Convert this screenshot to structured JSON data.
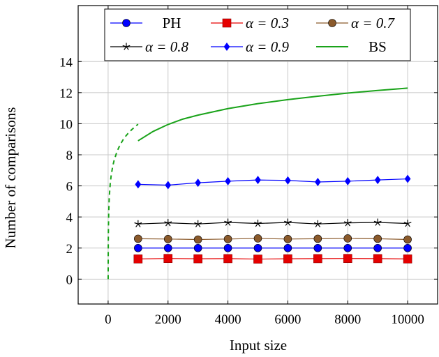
{
  "chart_data": {
    "type": "line",
    "xlabel": "Input size",
    "ylabel": "Number of comparisons",
    "xlim": [
      -1000,
      11000
    ],
    "ylim": [
      -1.6,
      17.6
    ],
    "xticks": [
      "0",
      "2000",
      "4000",
      "6000",
      "8000",
      "10000"
    ],
    "yticks": [
      "0",
      "2",
      "4",
      "6",
      "8",
      "10",
      "12",
      "14"
    ],
    "grid": true,
    "legend_position": "top-center",
    "series": [
      {
        "name": "PH",
        "color": "#0000ff",
        "marker": "circle",
        "style": "solid",
        "x": [
          1000,
          2000,
          3000,
          4000,
          5000,
          6000,
          7000,
          8000,
          9000,
          10000
        ],
        "y": [
          2,
          2,
          2,
          2,
          2,
          2,
          2,
          2,
          2,
          2
        ]
      },
      {
        "name": "α = 0.3",
        "color": "#e60000",
        "marker": "square",
        "style": "solid",
        "x": [
          1000,
          2000,
          3000,
          4000,
          5000,
          6000,
          7000,
          8000,
          9000,
          10000
        ],
        "y": [
          1.3,
          1.33,
          1.31,
          1.32,
          1.29,
          1.31,
          1.32,
          1.33,
          1.32,
          1.3
        ]
      },
      {
        "name": "α = 0.7",
        "color": "#8b5a2b",
        "marker": "circle",
        "style": "solid",
        "x": [
          1000,
          2000,
          3000,
          4000,
          5000,
          6000,
          7000,
          8000,
          9000,
          10000
        ],
        "y": [
          2.6,
          2.58,
          2.55,
          2.58,
          2.62,
          2.58,
          2.6,
          2.62,
          2.6,
          2.55
        ]
      },
      {
        "name": "α = 0.8",
        "color": "#000000",
        "marker": "star",
        "style": "solid",
        "x": [
          1000,
          2000,
          3000,
          4000,
          5000,
          6000,
          7000,
          8000,
          9000,
          10000
        ],
        "y": [
          3.55,
          3.62,
          3.55,
          3.65,
          3.58,
          3.65,
          3.55,
          3.62,
          3.65,
          3.58
        ]
      },
      {
        "name": "α = 0.9",
        "color": "#0000ff",
        "marker": "diamond",
        "style": "solid",
        "x": [
          1000,
          2000,
          3000,
          4000,
          5000,
          6000,
          7000,
          8000,
          9000,
          10000
        ],
        "y": [
          6.1,
          6.05,
          6.2,
          6.3,
          6.38,
          6.35,
          6.25,
          6.3,
          6.38,
          6.45
        ]
      },
      {
        "name": "BS",
        "color": "#1aa31a",
        "marker": "none",
        "style": "solid",
        "x": [
          1000,
          1500,
          2000,
          2500,
          3000,
          4000,
          5000,
          6000,
          7000,
          8000,
          9000,
          10000
        ],
        "y": [
          8.9,
          9.5,
          9.95,
          10.3,
          10.55,
          10.97,
          11.29,
          11.55,
          11.77,
          11.97,
          12.14,
          12.29
        ]
      },
      {
        "name": "",
        "color": "#1aa31a",
        "marker": "none",
        "style": "dashed",
        "x": [
          1,
          5,
          10,
          20,
          40,
          70,
          100,
          150,
          200,
          300,
          400,
          500,
          600,
          700,
          800,
          1000
        ],
        "y": [
          0,
          2.32,
          3.32,
          4.32,
          5.32,
          6.13,
          6.64,
          7.23,
          7.64,
          8.23,
          8.64,
          8.97,
          9.23,
          9.45,
          9.64,
          9.97
        ]
      }
    ]
  }
}
